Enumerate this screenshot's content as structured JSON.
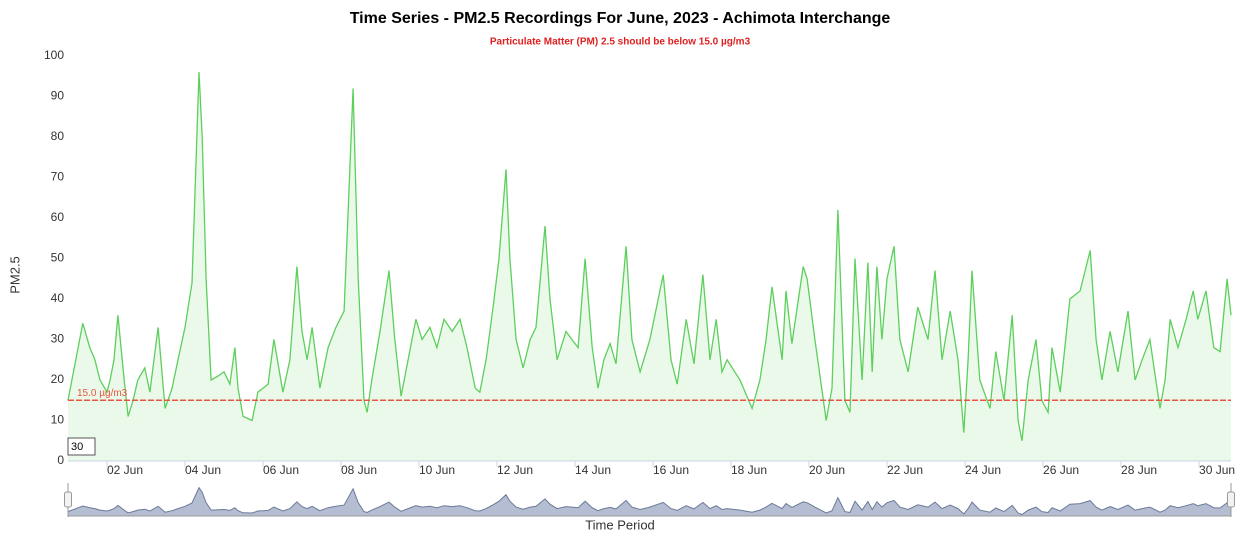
{
  "chart_data": {
    "type": "area",
    "title": "Time Series - PM2.5 Recordings For June, 2023 - Achimota Interchange",
    "subtitle": "Particulate Matter (PM) 2.5 should be below 15.0 µg/m3",
    "x_label": "Time Period",
    "y_label": "PM2.5",
    "threshold": {
      "value": 15,
      "label": "15.0 µg/m3",
      "color": "#e8553f"
    },
    "range_box": "30",
    "grid": false,
    "xlim": [
      1,
      30.82
    ],
    "ylim": [
      0,
      105
    ],
    "yticks": [
      0,
      10,
      20,
      30,
      40,
      50,
      60,
      70,
      80,
      90,
      100
    ],
    "xticks": [
      {
        "value": 2,
        "label": "02 Jun"
      },
      {
        "value": 4,
        "label": "04 Jun"
      },
      {
        "value": 6,
        "label": "06 Jun"
      },
      {
        "value": 8,
        "label": "08 Jun"
      },
      {
        "value": 10,
        "label": "10 Jun"
      },
      {
        "value": 12,
        "label": "12 Jun"
      },
      {
        "value": 14,
        "label": "14 Jun"
      },
      {
        "value": 16,
        "label": "16 Jun"
      },
      {
        "value": 18,
        "label": "18 Jun"
      },
      {
        "value": 20,
        "label": "20 Jun"
      },
      {
        "value": 22,
        "label": "22 Jun"
      },
      {
        "value": 24,
        "label": "24 Jun"
      },
      {
        "value": 26,
        "label": "26 Jun"
      },
      {
        "value": 28,
        "label": "28 Jun"
      },
      {
        "value": 30,
        "label": "30 Jun"
      }
    ],
    "color": "#5ccf5c",
    "x": [
      1.0,
      1.38,
      1.56,
      1.69,
      1.82,
      2.0,
      2.08,
      2.18,
      2.28,
      2.44,
      2.54,
      2.67,
      2.79,
      2.97,
      3.1,
      3.31,
      3.49,
      3.67,
      3.82,
      4.0,
      4.18,
      4.36,
      4.44,
      4.54,
      4.67,
      4.85,
      5.0,
      5.15,
      5.28,
      5.36,
      5.49,
      5.72,
      5.87,
      6.0,
      6.13,
      6.28,
      6.51,
      6.69,
      6.87,
      7.0,
      7.13,
      7.26,
      7.46,
      7.67,
      7.87,
      8.08,
      8.31,
      8.44,
      8.59,
      8.67,
      8.79,
      9.0,
      9.23,
      9.38,
      9.54,
      9.72,
      9.92,
      10.08,
      10.28,
      10.46,
      10.64,
      10.85,
      11.05,
      11.23,
      11.44,
      11.56,
      11.72,
      11.9,
      12.05,
      12.23,
      12.33,
      12.49,
      12.67,
      12.85,
      13.0,
      13.23,
      13.36,
      13.54,
      13.77,
      13.92,
      14.08,
      14.26,
      14.44,
      14.59,
      14.74,
      14.9,
      15.05,
      15.31,
      15.46,
      15.67,
      15.92,
      16.26,
      16.46,
      16.62,
      16.85,
      17.05,
      17.28,
      17.46,
      17.62,
      17.77,
      17.9,
      18.23,
      18.54,
      18.74,
      18.9,
      19.05,
      19.21,
      19.31,
      19.41,
      19.56,
      19.85,
      19.95,
      20.15,
      20.44,
      20.59,
      20.74,
      20.92,
      21.05,
      21.18,
      21.36,
      21.51,
      21.62,
      21.74,
      21.87,
      22.0,
      22.18,
      22.33,
      22.54,
      22.79,
      23.05,
      23.23,
      23.41,
      23.62,
      23.82,
      23.97,
      24.08,
      24.18,
      24.38,
      24.64,
      24.79,
      25.0,
      25.21,
      25.36,
      25.46,
      25.62,
      25.82,
      25.97,
      26.13,
      26.23,
      26.44,
      26.69,
      26.95,
      27.21,
      27.36,
      27.51,
      27.72,
      27.92,
      28.18,
      28.36,
      28.54,
      28.74,
      29.0,
      29.13,
      29.26,
      29.46,
      29.67,
      29.85,
      29.97,
      30.18,
      30.38,
      30.54,
      30.72,
      30.82
    ],
    "values": [
      15,
      34,
      28,
      25,
      20,
      17,
      20,
      25,
      36,
      20,
      11,
      15,
      20,
      23,
      17,
      33,
      13,
      18,
      25,
      33,
      44,
      96,
      80,
      45,
      20,
      21,
      22,
      19,
      28,
      18,
      11,
      10,
      17,
      18,
      19,
      30,
      17,
      25,
      48,
      32,
      25,
      33,
      18,
      28,
      33,
      37,
      92,
      45,
      15,
      12,
      20,
      32,
      47,
      30,
      16,
      25,
      35,
      30,
      33,
      28,
      35,
      32,
      35,
      28,
      18,
      17,
      25,
      38,
      50,
      72,
      50,
      30,
      23,
      30,
      33,
      58,
      40,
      25,
      32,
      30,
      28,
      50,
      28,
      18,
      25,
      29,
      24,
      53,
      30,
      22,
      30,
      46,
      25,
      19,
      35,
      24,
      46,
      25,
      35,
      22,
      25,
      20,
      13,
      20,
      30,
      43,
      32,
      25,
      42,
      29,
      48,
      45,
      30,
      10,
      18,
      62,
      15,
      12,
      50,
      20,
      49,
      22,
      48,
      30,
      45,
      53,
      30,
      22,
      38,
      30,
      47,
      25,
      37,
      25,
      7,
      25,
      47,
      20,
      13,
      27,
      15,
      36,
      10,
      5,
      20,
      30,
      15,
      12,
      28,
      17,
      40,
      42,
      52,
      30,
      20,
      32,
      22,
      37,
      20,
      25,
      30,
      13,
      20,
      35,
      28,
      35,
      42,
      35,
      42,
      28,
      27,
      45,
      36
    ]
  }
}
